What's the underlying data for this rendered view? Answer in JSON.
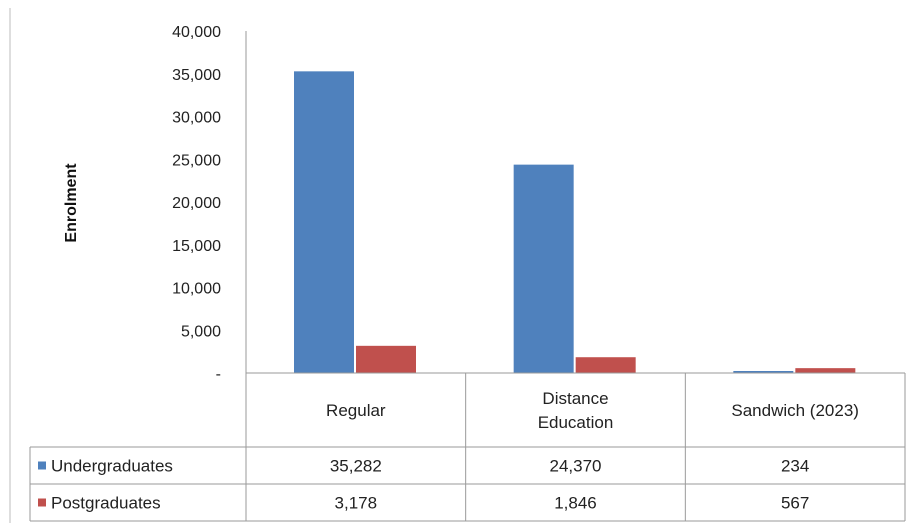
{
  "chart_data": {
    "type": "bar",
    "title": "",
    "xlabel": "",
    "ylabel": "Enrolment",
    "ylim": [
      0,
      40000
    ],
    "yticks": [
      0,
      5000,
      10000,
      15000,
      20000,
      25000,
      30000,
      35000,
      40000
    ],
    "ytick_labels": [
      "-",
      "5,000",
      "10,000",
      "15,000",
      "20,000",
      "25,000",
      "30,000",
      "35,000",
      "40,000"
    ],
    "categories": [
      "Regular",
      "Distance Education",
      "Sandwich (2023)"
    ],
    "series": [
      {
        "name": "Undergraduates",
        "color": "#4f81bd",
        "values": [
          35282,
          24370,
          234
        ],
        "value_labels": [
          "35,282",
          "24,370",
          "234"
        ]
      },
      {
        "name": "Postgraduates",
        "color": "#c0504d",
        "values": [
          3178,
          1846,
          567
        ],
        "value_labels": [
          "3,178",
          "1,846",
          "567"
        ]
      }
    ],
    "grid": false,
    "legend": "data-table-left",
    "data_table": true
  }
}
